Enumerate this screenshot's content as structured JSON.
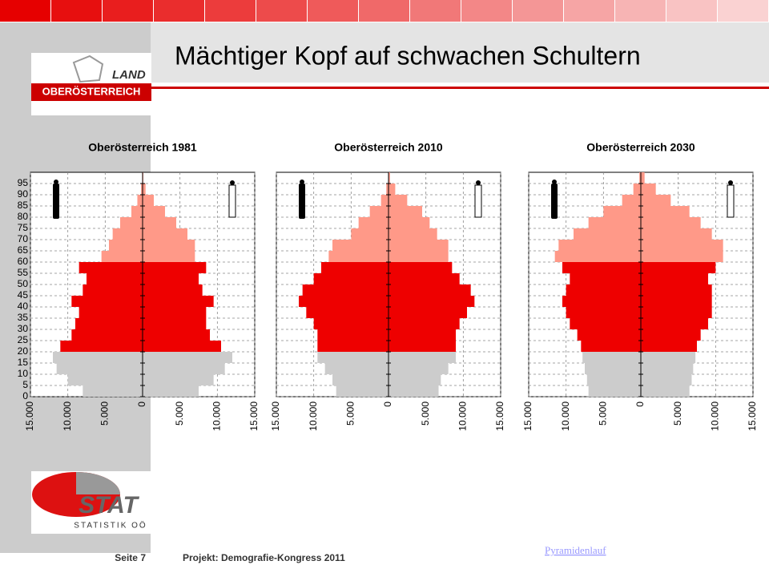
{
  "slide": {
    "title": "Mächtiger Kopf auf schwachen Schultern",
    "logo_top_1": "LAND",
    "logo_top_2": "OBERÖSTERREICH",
    "logo_bottom_1": "STAT",
    "logo_bottom_2": "STATISTIK OÖ",
    "page": "Seite 7",
    "project": "Projekt: Demografie-Kongress  2011",
    "link": "Pyramidenlauf"
  },
  "chart_data": [
    {
      "type": "pyramid",
      "title": "Oberösterreich 1981",
      "ages": [
        0,
        5,
        10,
        15,
        20,
        25,
        30,
        35,
        40,
        45,
        50,
        55,
        60,
        65,
        70,
        75,
        80,
        85,
        90,
        95
      ],
      "series": [
        {
          "name": "Männer",
          "values": [
            8000,
            10000,
            11500,
            12000,
            11000,
            9500,
            9000,
            8500,
            9500,
            8000,
            7500,
            8500,
            5500,
            4500,
            4000,
            3000,
            1500,
            700,
            200,
            50
          ]
        },
        {
          "name": "Frauen",
          "values": [
            7500,
            9500,
            11000,
            12000,
            10500,
            9000,
            8500,
            8500,
            9500,
            8000,
            7500,
            8500,
            7000,
            7000,
            6000,
            4500,
            3000,
            1500,
            400,
            100
          ]
        }
      ],
      "bands": [
        {
          "from": 0,
          "to": 20,
          "color": "#cccccc"
        },
        {
          "from": 20,
          "to": 60,
          "color": "#ee0000"
        },
        {
          "from": 60,
          "to": 100,
          "color": "#ff9988"
        }
      ],
      "xlim": [
        -15000,
        15000
      ],
      "xticks": [
        {
          "value": -15000,
          "label": "15.000"
        },
        {
          "value": -10000,
          "label": "10.000"
        },
        {
          "value": -5000,
          "label": "5.000"
        },
        0,
        {
          "value": 5000,
          "label": "5.000"
        },
        {
          "value": 10000,
          "label": "10.000"
        },
        {
          "value": 15000,
          "label": "15.000"
        }
      ],
      "ylim": [
        0,
        100
      ],
      "yticks": [
        0,
        5,
        10,
        15,
        20,
        25,
        30,
        35,
        40,
        45,
        50,
        55,
        60,
        65,
        70,
        75,
        80,
        85,
        90,
        95
      ],
      "ytick_labels": true,
      "grid": true
    },
    {
      "type": "pyramid",
      "title": "Oberösterreich 2010",
      "ages": [
        0,
        5,
        10,
        15,
        20,
        25,
        30,
        35,
        40,
        45,
        50,
        55,
        60,
        65,
        70,
        75,
        80,
        85,
        90,
        95
      ],
      "series": [
        {
          "name": "Männer",
          "values": [
            7000,
            7500,
            8500,
            9500,
            9500,
            9500,
            10000,
            11000,
            12000,
            11500,
            10000,
            9000,
            8000,
            7500,
            5000,
            4000,
            2500,
            1000,
            300,
            50
          ]
        },
        {
          "name": "Frauen",
          "values": [
            6700,
            7000,
            8000,
            9000,
            9000,
            9000,
            9500,
            10500,
            11500,
            11000,
            9500,
            8500,
            8000,
            8000,
            6500,
            5500,
            4500,
            2500,
            900,
            200
          ]
        }
      ],
      "bands": [
        {
          "from": 0,
          "to": 20,
          "color": "#cccccc"
        },
        {
          "from": 20,
          "to": 60,
          "color": "#ee0000"
        },
        {
          "from": 60,
          "to": 100,
          "color": "#ff9988"
        }
      ],
      "xlim": [
        -15000,
        15000
      ],
      "xticks": [
        {
          "value": -15000,
          "label": "15.000"
        },
        {
          "value": -10000,
          "label": "10.000"
        },
        {
          "value": -5000,
          "label": "5.000"
        },
        0,
        {
          "value": 5000,
          "label": "5.000"
        },
        {
          "value": 10000,
          "label": "10.000"
        },
        {
          "value": 15000,
          "label": "15.000"
        }
      ],
      "ylim": [
        0,
        100
      ],
      "yticks": [
        0,
        5,
        10,
        15,
        20,
        25,
        30,
        35,
        40,
        45,
        50,
        55,
        60,
        65,
        70,
        75,
        80,
        85,
        90,
        95
      ],
      "ytick_labels": false,
      "grid": true
    },
    {
      "type": "pyramid",
      "title": "Oberösterreich 2030",
      "ages": [
        0,
        5,
        10,
        15,
        20,
        25,
        30,
        35,
        40,
        45,
        50,
        55,
        60,
        65,
        70,
        75,
        80,
        85,
        90,
        95
      ],
      "series": [
        {
          "name": "Männer",
          "values": [
            7000,
            7200,
            7500,
            7800,
            8000,
            8500,
            9500,
            10000,
            10500,
            10000,
            9500,
            10500,
            11500,
            11000,
            9000,
            7000,
            5000,
            2500,
            1000,
            200
          ]
        },
        {
          "name": "Frauen",
          "values": [
            6500,
            6800,
            7000,
            7300,
            7500,
            8000,
            9000,
            9500,
            9500,
            9500,
            9000,
            10000,
            11000,
            11000,
            9500,
            8000,
            6500,
            4000,
            2000,
            500
          ]
        }
      ],
      "bands": [
        {
          "from": 0,
          "to": 20,
          "color": "#cccccc"
        },
        {
          "from": 20,
          "to": 60,
          "color": "#ee0000"
        },
        {
          "from": 60,
          "to": 100,
          "color": "#ff9988"
        }
      ],
      "xlim": [
        -15000,
        15000
      ],
      "xticks": [
        {
          "value": -15000,
          "label": "15.000"
        },
        {
          "value": -10000,
          "label": "10.000"
        },
        {
          "value": -5000,
          "label": "5.000"
        },
        0,
        {
          "value": 5000,
          "label": "5.000"
        },
        {
          "value": 10000,
          "label": "10.000"
        },
        {
          "value": 15000,
          "label": "15.000"
        }
      ],
      "ylim": [
        0,
        100
      ],
      "yticks": [
        0,
        5,
        10,
        15,
        20,
        25,
        30,
        35,
        40,
        45,
        50,
        55,
        60,
        65,
        70,
        75,
        80,
        85,
        90,
        95
      ],
      "ytick_labels": false,
      "grid": true
    }
  ]
}
